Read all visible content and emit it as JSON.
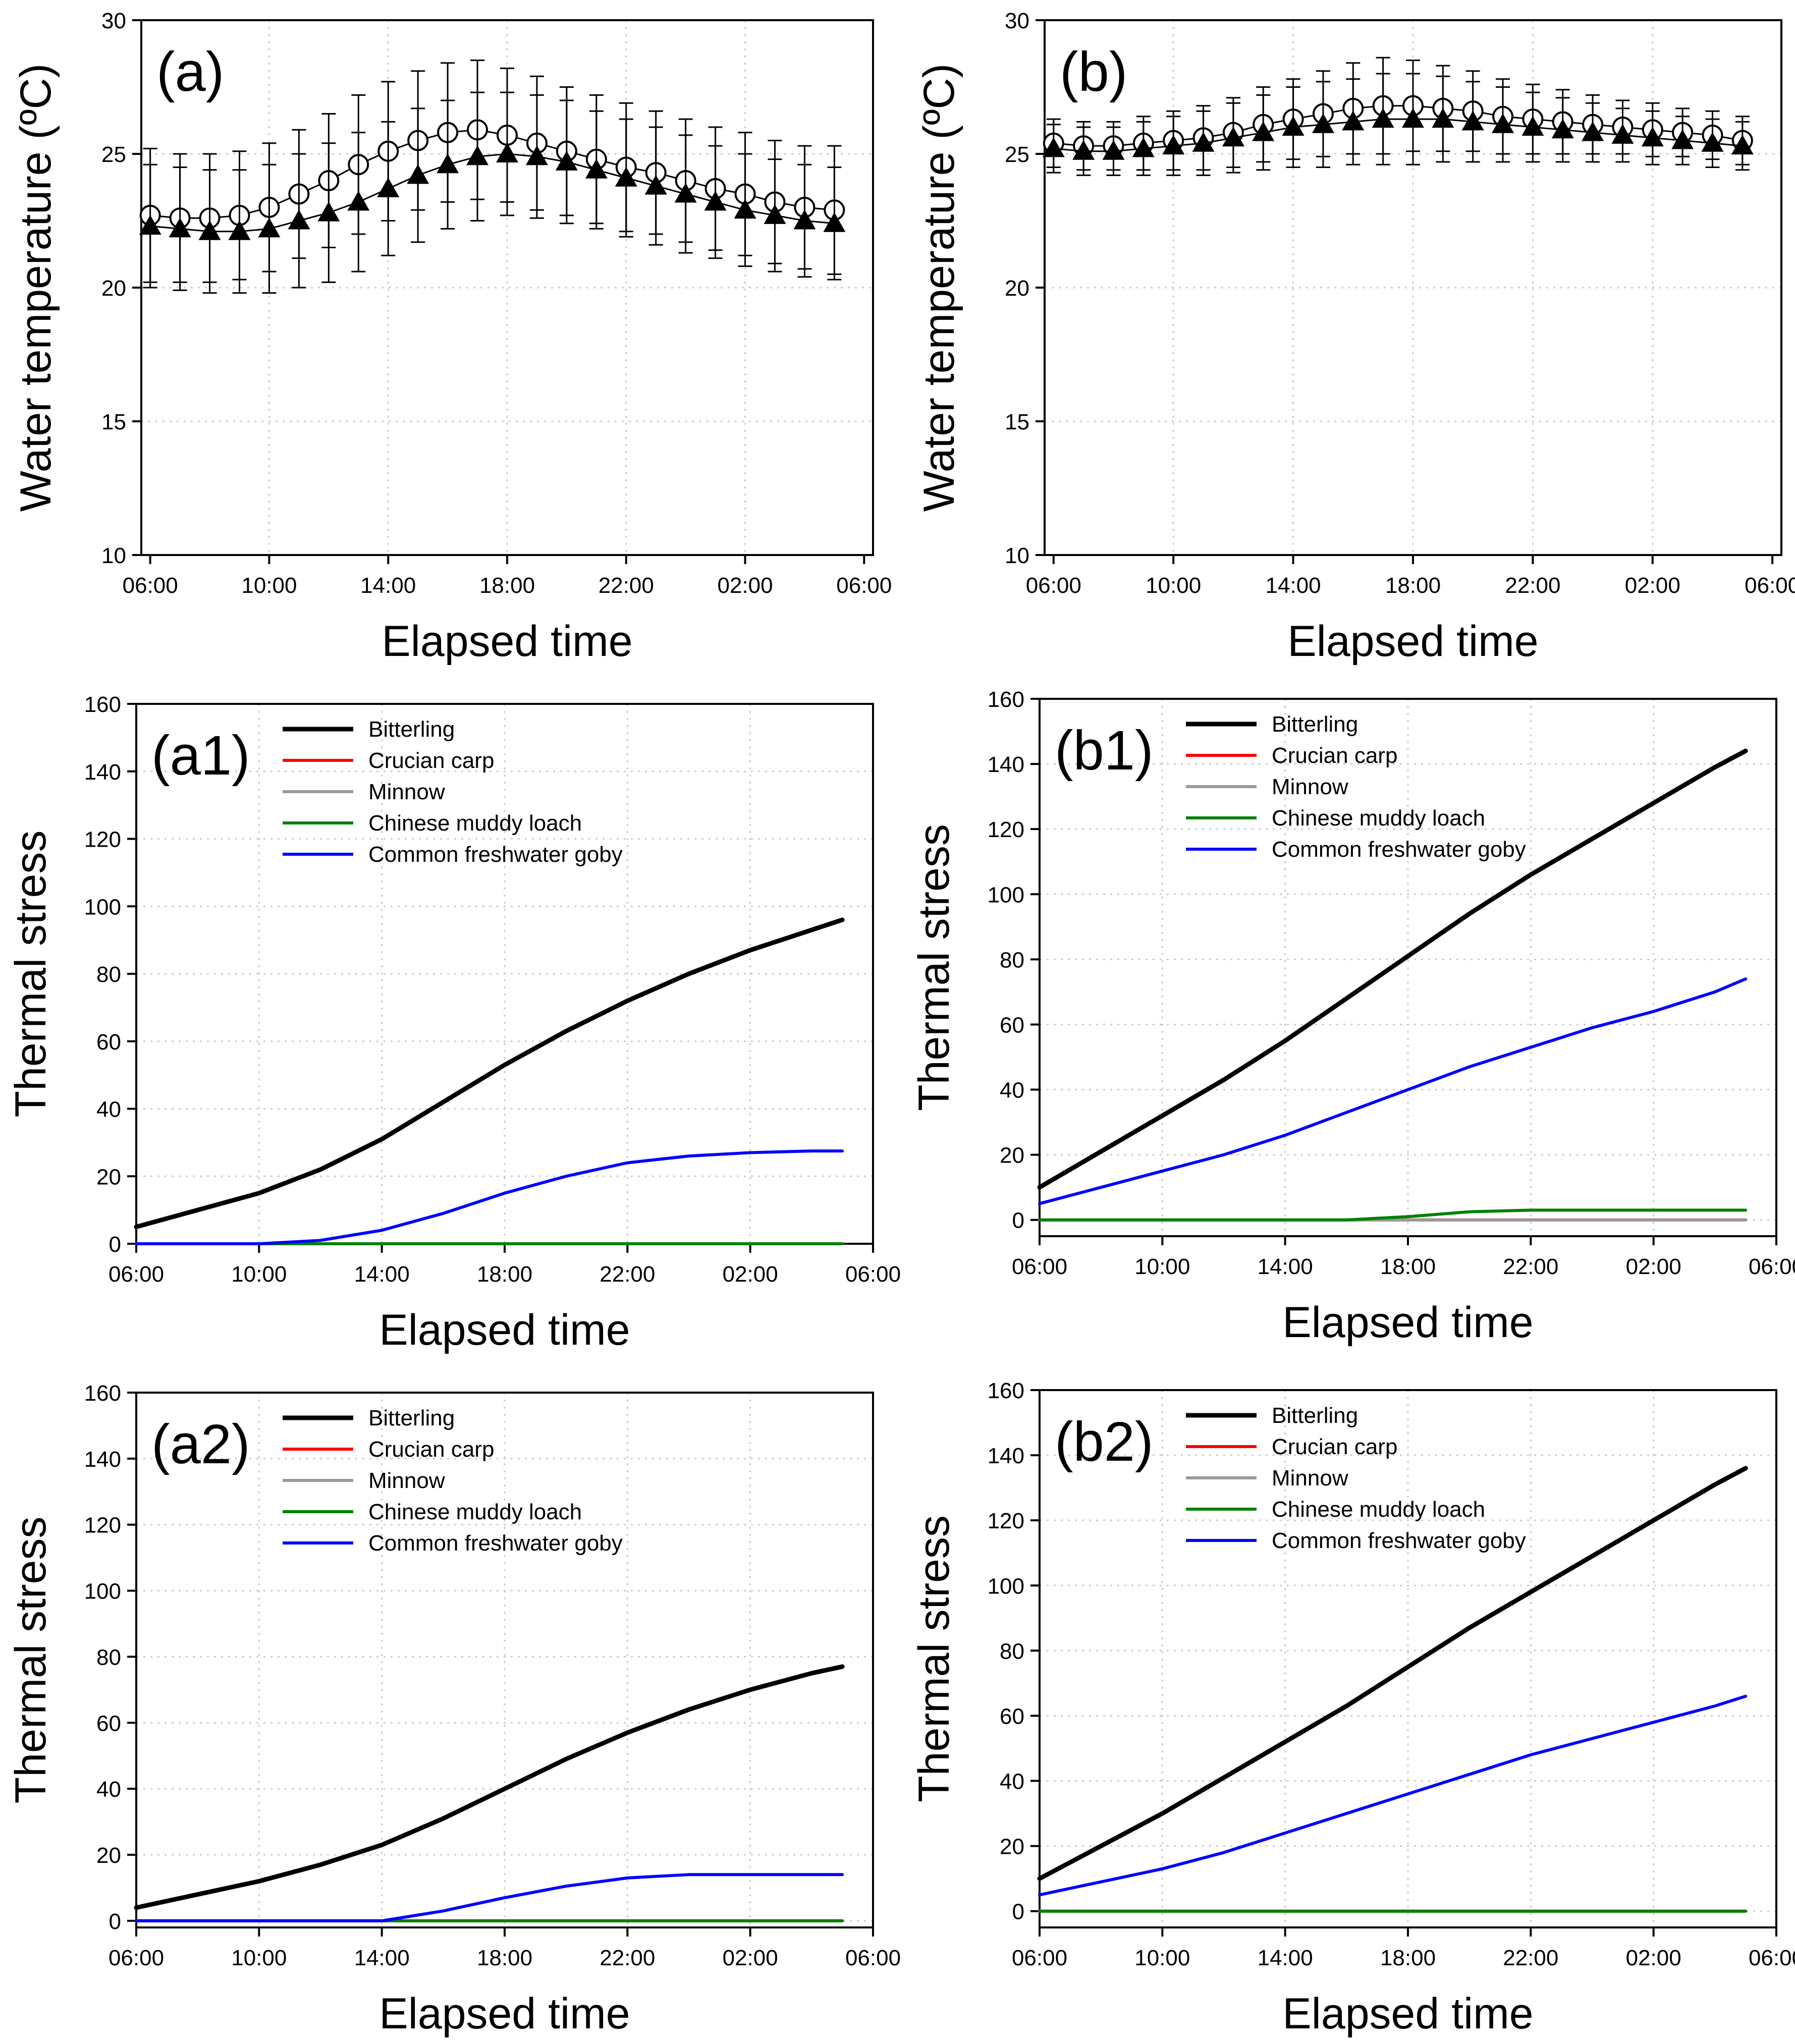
{
  "x_ticks": [
    "06:00",
    "10:00",
    "14:00",
    "18:00",
    "22:00",
    "02:00",
    "06:00"
  ],
  "legend_labels": [
    "Bitterling",
    "Crucian carp",
    "Minnow",
    "Chinese muddy loach",
    "Common freshwater goby"
  ],
  "series_colors": {
    "Bitterling": "#000000",
    "Crucian carp": "#ff0000",
    "Minnow": "#999999",
    "Chinese muddy loach": "#008000",
    "Common freshwater goby": "#0000ff"
  },
  "chart_data": [
    {
      "id": "a",
      "panel_label": "(a)",
      "type": "line",
      "xlabel": "Elapsed time",
      "ylabel": "Water temperature (ºC)",
      "ylim": [
        10,
        30
      ],
      "yticks": [
        10,
        15,
        20,
        25,
        30
      ],
      "grid": true,
      "x_hours": [
        0,
        1,
        2,
        3,
        4,
        5,
        6,
        7,
        8,
        9,
        10,
        11,
        12,
        13,
        14,
        15,
        16,
        17,
        18,
        19,
        20,
        21,
        22,
        23
      ],
      "series": [
        {
          "name": "Open circle",
          "marker": "circle-open",
          "values": [
            22.7,
            22.6,
            22.6,
            22.7,
            23.0,
            23.5,
            24.0,
            24.6,
            25.1,
            25.5,
            25.8,
            25.9,
            25.7,
            25.4,
            25.1,
            24.8,
            24.5,
            24.3,
            24.0,
            23.7,
            23.5,
            23.2,
            23.0,
            22.9
          ],
          "errors": [
            2.5,
            2.4,
            2.4,
            2.4,
            2.4,
            2.4,
            2.5,
            2.6,
            2.6,
            2.6,
            2.6,
            2.6,
            2.5,
            2.5,
            2.4,
            2.4,
            2.4,
            2.3,
            2.3,
            2.3,
            2.3,
            2.3,
            2.3,
            2.4
          ]
        },
        {
          "name": "Filled triangle",
          "marker": "triangle-filled",
          "values": [
            22.3,
            22.2,
            22.1,
            22.1,
            22.2,
            22.5,
            22.8,
            23.2,
            23.7,
            24.2,
            24.6,
            24.9,
            25.0,
            24.9,
            24.7,
            24.4,
            24.1,
            23.8,
            23.5,
            23.2,
            22.9,
            22.7,
            22.5,
            22.4
          ],
          "errors": [
            2.3,
            2.3,
            2.3,
            2.3,
            2.4,
            2.5,
            2.6,
            2.6,
            2.5,
            2.5,
            2.4,
            2.4,
            2.3,
            2.3,
            2.3,
            2.2,
            2.2,
            2.2,
            2.2,
            2.1,
            2.1,
            2.1,
            2.1,
            2.1
          ]
        }
      ]
    },
    {
      "id": "b",
      "panel_label": "(b)",
      "type": "line",
      "xlabel": "Elapsed time",
      "ylabel": "Water temperature (ºC)",
      "ylim": [
        10,
        30
      ],
      "yticks": [
        10,
        15,
        20,
        25,
        30
      ],
      "grid": true,
      "x_hours": [
        0,
        1,
        2,
        3,
        4,
        5,
        6,
        7,
        8,
        9,
        10,
        11,
        12,
        13,
        14,
        15,
        16,
        17,
        18,
        19,
        20,
        21,
        22,
        23
      ],
      "series": [
        {
          "name": "Open circle",
          "marker": "circle-open",
          "values": [
            25.4,
            25.3,
            25.3,
            25.4,
            25.5,
            25.6,
            25.8,
            26.1,
            26.3,
            26.5,
            26.7,
            26.8,
            26.8,
            26.7,
            26.6,
            26.4,
            26.3,
            26.2,
            26.1,
            26.0,
            25.9,
            25.8,
            25.7,
            25.5
          ],
          "errors": [
            0.9,
            0.9,
            0.9,
            1.0,
            1.1,
            1.2,
            1.3,
            1.4,
            1.5,
            1.6,
            1.7,
            1.8,
            1.7,
            1.6,
            1.5,
            1.4,
            1.3,
            1.2,
            1.1,
            1.0,
            1.0,
            0.9,
            0.9,
            0.9
          ]
        },
        {
          "name": "Filled triangle",
          "marker": "triangle-filled",
          "values": [
            25.2,
            25.1,
            25.1,
            25.2,
            25.3,
            25.4,
            25.6,
            25.8,
            26.0,
            26.1,
            26.2,
            26.3,
            26.3,
            26.3,
            26.2,
            26.1,
            26.0,
            25.9,
            25.8,
            25.7,
            25.6,
            25.5,
            25.4,
            25.3
          ],
          "errors": [
            0.9,
            0.9,
            0.9,
            1.0,
            1.1,
            1.2,
            1.3,
            1.4,
            1.5,
            1.6,
            1.6,
            1.7,
            1.7,
            1.6,
            1.5,
            1.4,
            1.3,
            1.2,
            1.1,
            1.0,
            1.0,
            0.9,
            0.9,
            0.9
          ]
        }
      ]
    },
    {
      "id": "a1",
      "panel_label": "(a1)",
      "type": "line",
      "xlabel": "Elapsed time",
      "ylabel": "Thermal stress",
      "ylim": [
        0,
        160
      ],
      "yticks": [
        0,
        20,
        40,
        60,
        80,
        100,
        120,
        140,
        160
      ],
      "grid": true,
      "x_hours": [
        0,
        2,
        4,
        6,
        8,
        10,
        12,
        14,
        16,
        18,
        20,
        22,
        23
      ],
      "series": [
        {
          "name": "Bitterling",
          "values": [
            5,
            10,
            15,
            22,
            31,
            42,
            53,
            63,
            72,
            80,
            87,
            93,
            96
          ]
        },
        {
          "name": "Crucian carp",
          "values": [
            0,
            0,
            0,
            0,
            0,
            0,
            0,
            0,
            0,
            0,
            0,
            0,
            0
          ]
        },
        {
          "name": "Minnow",
          "values": [
            0,
            0,
            0,
            0,
            0,
            0,
            0,
            0,
            0,
            0,
            0,
            0,
            0
          ]
        },
        {
          "name": "Chinese muddy loach",
          "values": [
            0,
            0,
            0,
            0,
            0,
            0,
            0,
            0,
            0,
            0,
            0,
            0,
            0
          ]
        },
        {
          "name": "Common freshwater goby",
          "values": [
            0,
            0,
            0,
            1,
            4,
            9,
            15,
            20,
            24,
            26,
            27,
            27.5,
            27.5
          ]
        }
      ]
    },
    {
      "id": "b1",
      "panel_label": "(b1)",
      "type": "line",
      "xlabel": "Elapsed time",
      "ylabel": "Thermal stress",
      "ylim": [
        -5,
        160
      ],
      "yticks": [
        0,
        20,
        40,
        60,
        80,
        100,
        120,
        140,
        160
      ],
      "grid": true,
      "x_hours": [
        0,
        2,
        4,
        6,
        8,
        10,
        12,
        14,
        16,
        18,
        20,
        22,
        23
      ],
      "series": [
        {
          "name": "Bitterling",
          "values": [
            10,
            21,
            32,
            43,
            55,
            68,
            81,
            94,
            106,
            117,
            128,
            139,
            144
          ]
        },
        {
          "name": "Crucian carp",
          "values": [
            0,
            0,
            0,
            0,
            0,
            0,
            0,
            0,
            0,
            0,
            0,
            0,
            0
          ]
        },
        {
          "name": "Minnow",
          "values": [
            0,
            0,
            0,
            0,
            0,
            0,
            0,
            0,
            0,
            0,
            0,
            0,
            0
          ]
        },
        {
          "name": "Chinese muddy loach",
          "values": [
            0,
            0,
            0,
            0,
            0,
            0,
            1,
            2.5,
            3,
            3,
            3,
            3,
            3
          ]
        },
        {
          "name": "Common freshwater goby",
          "values": [
            5,
            10,
            15,
            20,
            26,
            33,
            40,
            47,
            53,
            59,
            64,
            70,
            74
          ]
        }
      ]
    },
    {
      "id": "a2",
      "panel_label": "(a2)",
      "type": "line",
      "xlabel": "Elapsed time",
      "ylabel": "Thermal stress",
      "ylim": [
        -2,
        160
      ],
      "yticks": [
        0,
        20,
        40,
        60,
        80,
        100,
        120,
        140,
        160
      ],
      "grid": true,
      "x_hours": [
        0,
        2,
        4,
        6,
        8,
        10,
        12,
        14,
        16,
        18,
        20,
        22,
        23
      ],
      "series": [
        {
          "name": "Bitterling",
          "values": [
            4,
            8,
            12,
            17,
            23,
            31,
            40,
            49,
            57,
            64,
            70,
            75,
            77
          ]
        },
        {
          "name": "Crucian carp",
          "values": [
            0,
            0,
            0,
            0,
            0,
            0,
            0,
            0,
            0,
            0,
            0,
            0,
            0
          ]
        },
        {
          "name": "Minnow",
          "values": [
            0,
            0,
            0,
            0,
            0,
            0,
            0,
            0,
            0,
            0,
            0,
            0,
            0
          ]
        },
        {
          "name": "Chinese muddy loach",
          "values": [
            0,
            0,
            0,
            0,
            0,
            0,
            0,
            0,
            0,
            0,
            0,
            0,
            0
          ]
        },
        {
          "name": "Common freshwater goby",
          "values": [
            0,
            0,
            0,
            0,
            0,
            3,
            7,
            10.5,
            13,
            14,
            14,
            14,
            14
          ]
        }
      ]
    },
    {
      "id": "b2",
      "panel_label": "(b2)",
      "type": "line",
      "xlabel": "Elapsed time",
      "ylabel": "Thermal stress",
      "ylim": [
        -5,
        160
      ],
      "yticks": [
        0,
        20,
        40,
        60,
        80,
        100,
        120,
        140,
        160
      ],
      "grid": true,
      "x_hours": [
        0,
        2,
        4,
        6,
        8,
        10,
        12,
        14,
        16,
        18,
        20,
        22,
        23
      ],
      "series": [
        {
          "name": "Bitterling",
          "values": [
            10,
            20,
            30,
            41,
            52,
            63,
            75,
            87,
            98,
            109,
            120,
            131,
            136
          ]
        },
        {
          "name": "Crucian carp",
          "values": [
            0,
            0,
            0,
            0,
            0,
            0,
            0,
            0,
            0,
            0,
            0,
            0,
            0
          ]
        },
        {
          "name": "Minnow",
          "values": [
            0,
            0,
            0,
            0,
            0,
            0,
            0,
            0,
            0,
            0,
            0,
            0,
            0
          ]
        },
        {
          "name": "Chinese muddy loach",
          "values": [
            0,
            0,
            0,
            0,
            0,
            0,
            0,
            0,
            0,
            0,
            0,
            0,
            0
          ]
        },
        {
          "name": "Common freshwater goby",
          "values": [
            5,
            9,
            13,
            18,
            24,
            30,
            36,
            42,
            48,
            53,
            58,
            63,
            66
          ]
        }
      ]
    }
  ]
}
